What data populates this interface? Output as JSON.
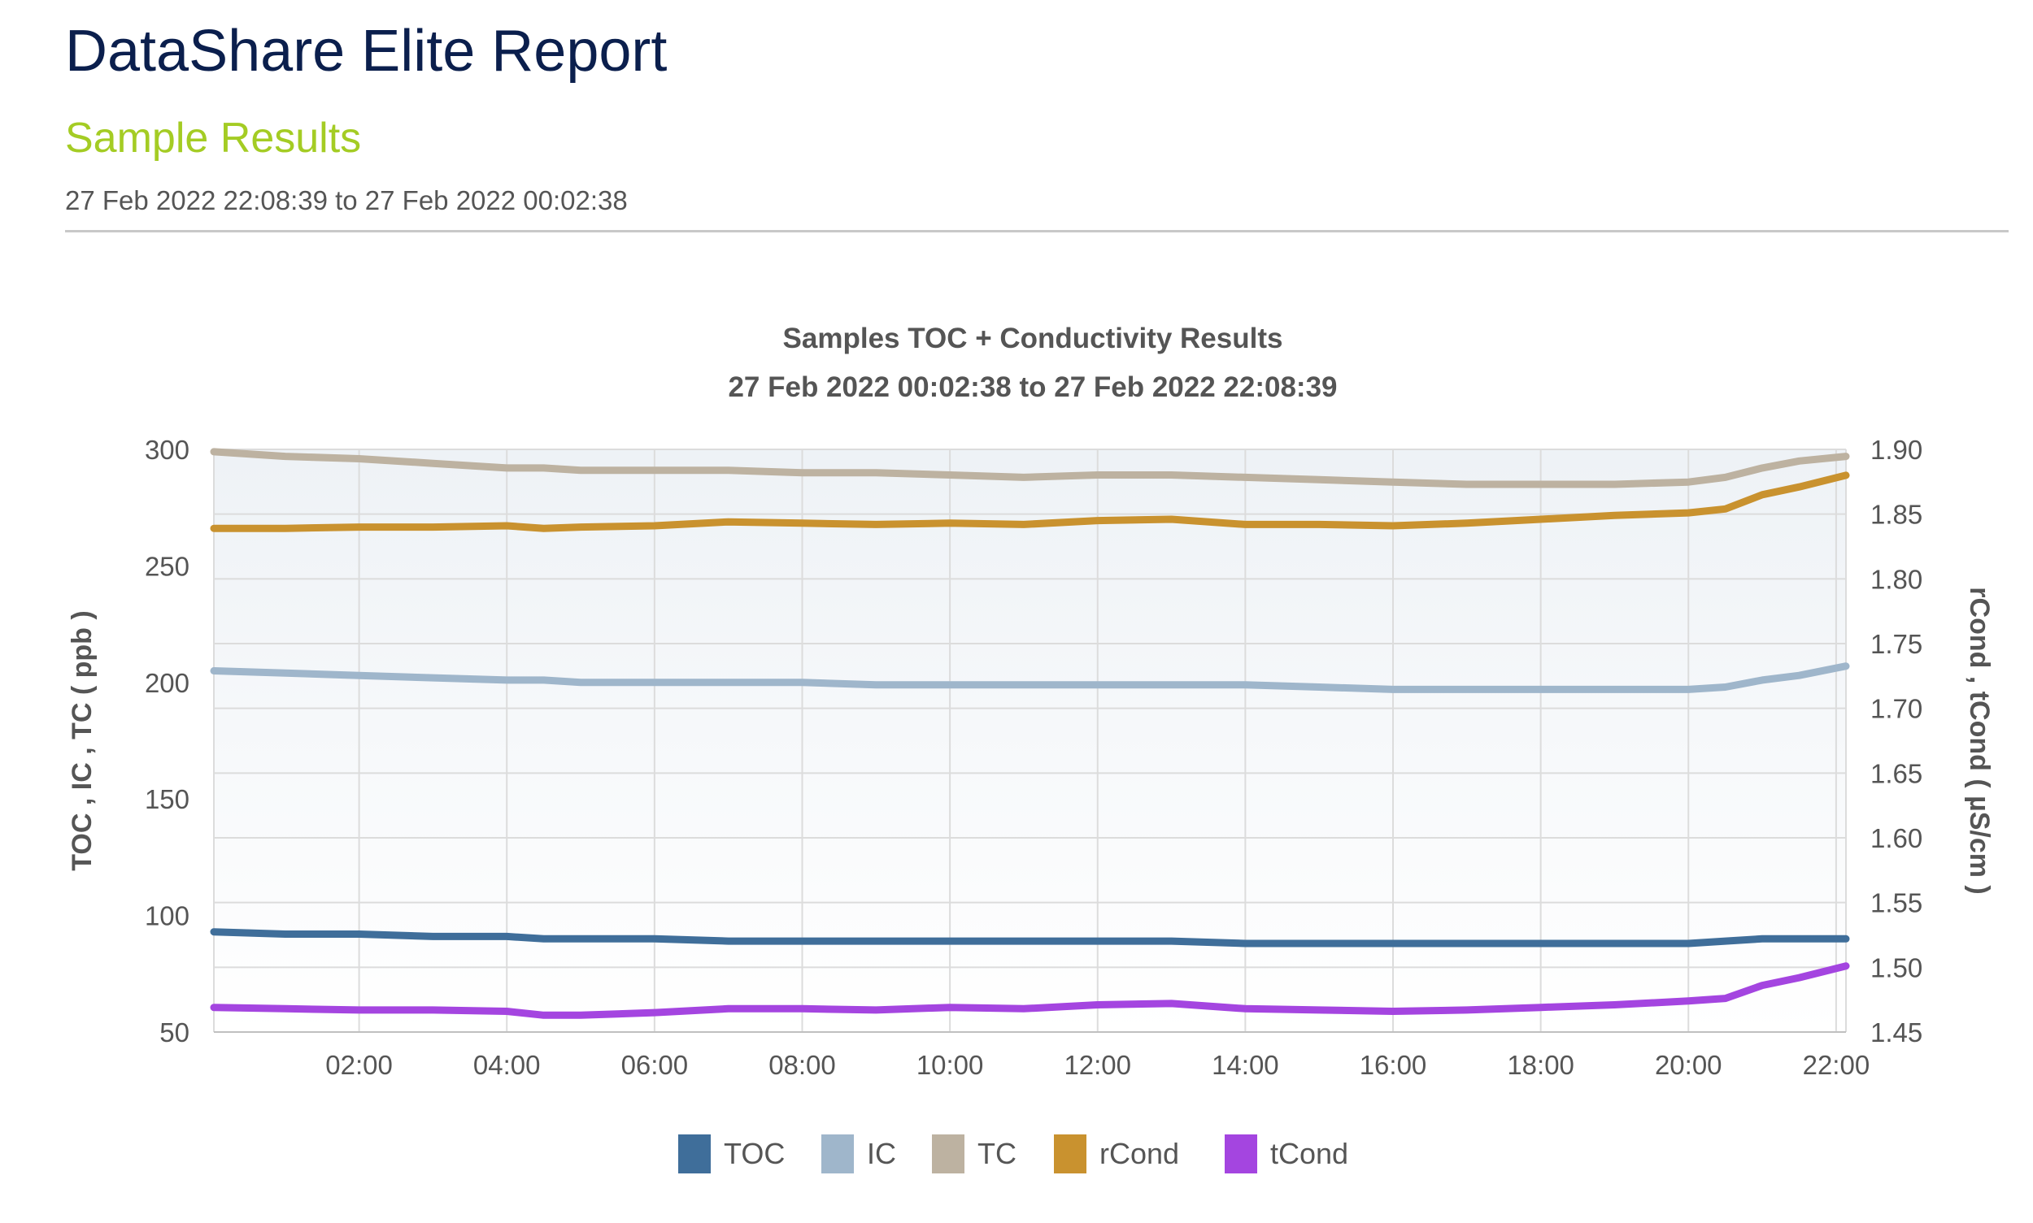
{
  "report": {
    "title": "DataShare Elite Report",
    "subtitle": "Sample Results",
    "date_range": "27 Feb 2022 22:08:39 to 27 Feb 2022 00:02:38"
  },
  "colors": {
    "title": "#0b1f4d",
    "subtitle": "#a4cc24",
    "TOC": "#3f6e9a",
    "IC": "#9fb6cb",
    "TC": "#bdb2a1",
    "rCond": "#c9922f",
    "tCond": "#a445e0"
  },
  "chart_data": {
    "type": "line",
    "title": "Samples TOC + Conductivity Results",
    "subtitle": "27 Feb 2022 00:02:38 to 27 Feb 2022 22:08:39",
    "xlabel": "",
    "x_ticks": [
      "02:00",
      "04:00",
      "06:00",
      "08:00",
      "10:00",
      "12:00",
      "14:00",
      "16:00",
      "18:00",
      "20:00",
      "22:00"
    ],
    "x_range": [
      "00:02",
      "22:08"
    ],
    "y_left": {
      "label": "TOC , IC , TC  ( ppb )",
      "range": [
        50,
        300
      ],
      "ticks": [
        "50",
        "100",
        "150",
        "200",
        "250",
        "300"
      ]
    },
    "y_right": {
      "label": "rCond , tCond  ( µS/cm )",
      "range": [
        1.45,
        1.9
      ],
      "ticks": [
        "1.45",
        "1.50",
        "1.55",
        "1.60",
        "1.65",
        "1.70",
        "1.75",
        "1.80",
        "1.85",
        "1.90"
      ]
    },
    "grid": true,
    "legend_position": "bottom-center",
    "x_time_values": [
      "00:02",
      "01:00",
      "02:00",
      "03:00",
      "04:00",
      "04:30",
      "05:00",
      "06:00",
      "07:00",
      "08:00",
      "09:00",
      "10:00",
      "11:00",
      "12:00",
      "13:00",
      "14:00",
      "15:00",
      "16:00",
      "17:00",
      "18:00",
      "19:00",
      "20:00",
      "20:30",
      "21:00",
      "21:30",
      "22:08"
    ],
    "series": [
      {
        "name": "TOC",
        "axis": "left",
        "values": [
          93,
          92,
          92,
          91,
          91,
          90,
          90,
          90,
          89,
          89,
          89,
          89,
          89,
          89,
          89,
          88,
          88,
          88,
          88,
          88,
          88,
          88,
          89,
          90,
          90,
          90
        ]
      },
      {
        "name": "IC",
        "axis": "left",
        "values": [
          205,
          204,
          203,
          202,
          201,
          201,
          200,
          200,
          200,
          200,
          199,
          199,
          199,
          199,
          199,
          199,
          198,
          197,
          197,
          197,
          197,
          197,
          198,
          201,
          203,
          207
        ]
      },
      {
        "name": "TC",
        "axis": "left",
        "values": [
          299,
          297,
          296,
          294,
          292,
          292,
          291,
          291,
          291,
          290,
          290,
          289,
          288,
          289,
          289,
          288,
          287,
          286,
          285,
          285,
          285,
          286,
          288,
          292,
          295,
          297
        ]
      },
      {
        "name": "rCond",
        "axis": "right",
        "values": [
          1.839,
          1.839,
          1.84,
          1.84,
          1.841,
          1.839,
          1.84,
          1.841,
          1.844,
          1.843,
          1.842,
          1.843,
          1.842,
          1.845,
          1.846,
          1.842,
          1.842,
          1.841,
          1.843,
          1.846,
          1.849,
          1.851,
          1.854,
          1.865,
          1.871,
          1.88
        ]
      },
      {
        "name": "tCond",
        "axis": "right",
        "values": [
          1.469,
          1.468,
          1.467,
          1.467,
          1.466,
          1.463,
          1.463,
          1.465,
          1.468,
          1.468,
          1.467,
          1.469,
          1.468,
          1.471,
          1.472,
          1.468,
          1.467,
          1.466,
          1.467,
          1.469,
          1.471,
          1.474,
          1.476,
          1.486,
          1.492,
          1.501
        ]
      }
    ]
  }
}
